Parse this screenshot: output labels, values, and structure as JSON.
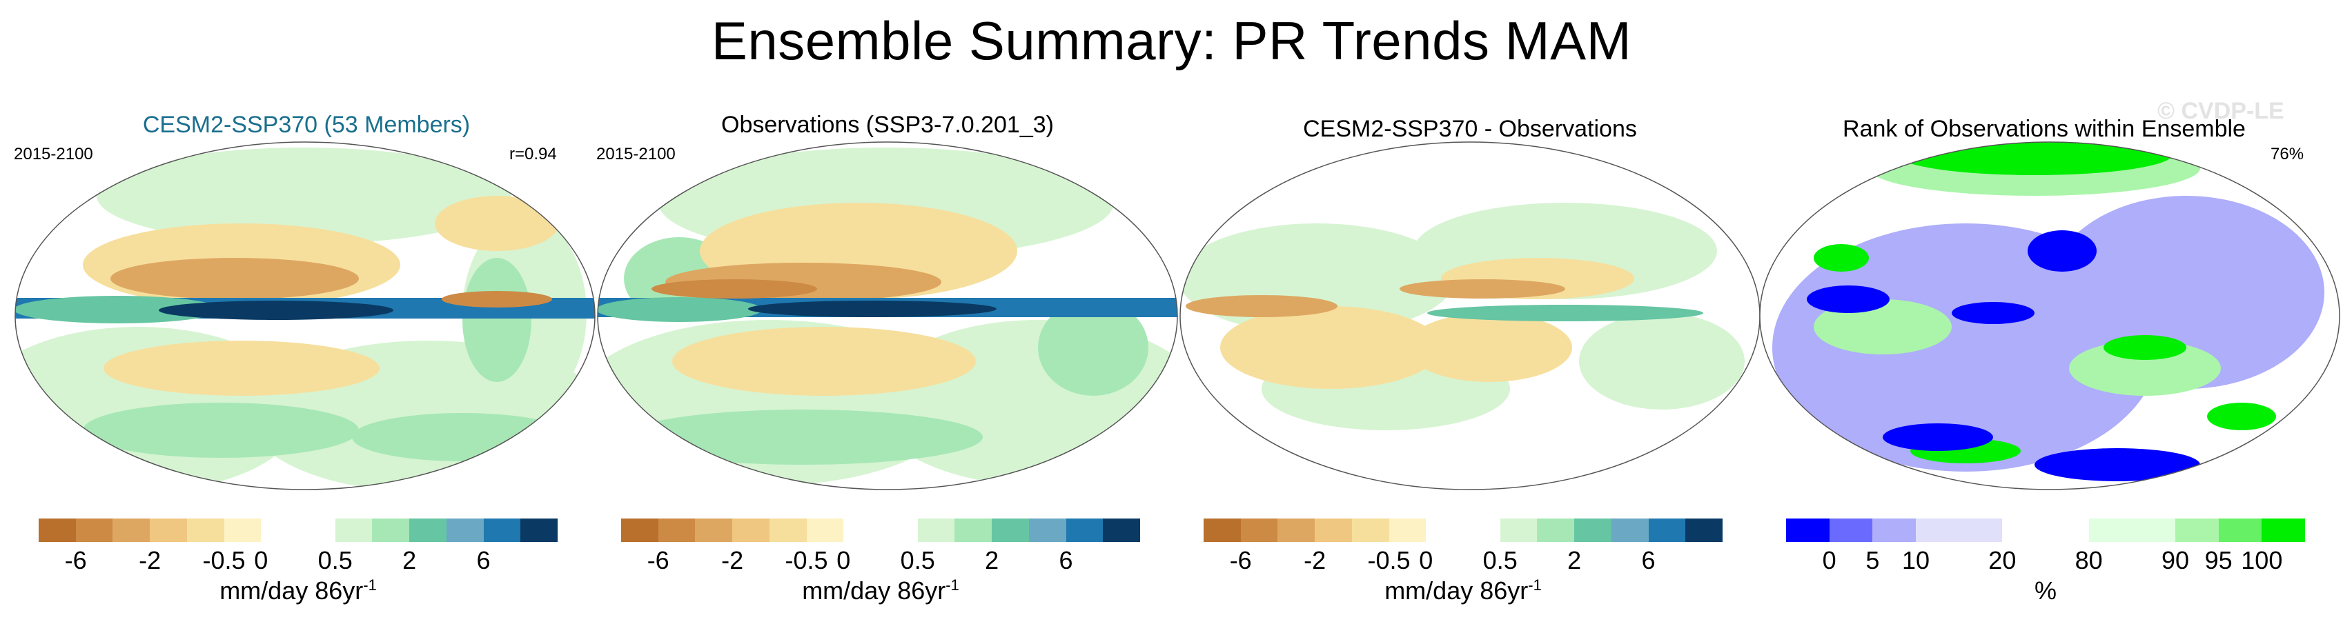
{
  "figure": {
    "title": "Ensemble Summary: PR Trends MAM",
    "watermark": "© CVDP-LE"
  },
  "panels": [
    {
      "title": "CESM2-SSP370 (53 Members)",
      "title_color": "#1a6f8e",
      "period": "2015-2100",
      "stat": "r=0.94"
    },
    {
      "title": "Observations (SSP3-7.0.201_3)",
      "period": "2015-2100"
    },
    {
      "title": "CESM2-SSP370 - Observations"
    },
    {
      "title": "Rank of Observations within Ensemble",
      "stat": "76%"
    }
  ],
  "trend_colorbar": {
    "colors": [
      "#b8702c",
      "#cc8a45",
      "#dea761",
      "#f0c780",
      "#f6df9d",
      "#fcf2c4",
      "#ffffff",
      "#ffffff",
      "#d6f4d2",
      "#a7e7b6",
      "#66c5a2",
      "#6aa8c3",
      "#1f78b0",
      "#0a3a63"
    ],
    "tick_labels": [
      "-6",
      "-2",
      "-0.5",
      "0",
      "0.5",
      "2",
      "6"
    ],
    "unit": "mm/day 86yr",
    "unit_exponent": "-1"
  },
  "rank_colorbar": {
    "colors": [
      "#0000ff",
      "#6a6aff",
      "#aeaefa",
      "#e0e0fa",
      "#e0e0fa",
      "#ffffff",
      "#ffffff",
      "#e0ffe0",
      "#e0ffe0",
      "#aaf5aa",
      "#66f066",
      "#00ee00"
    ],
    "tick_labels": [
      "0",
      "5",
      "10",
      "20",
      "80",
      "90",
      "95",
      "100"
    ],
    "unit": "%"
  },
  "map_colors": {
    "green_light": "#d6f4d2",
    "green_mid": "#a7e7b6",
    "teal": "#66c5a2",
    "blue": "#1f78b0",
    "navy": "#0a3a63",
    "tan_light": "#f6df9d",
    "tan": "#dea761",
    "brown": "#cc8a45",
    "rank_blue": "#0000ff",
    "rank_blue_light": "#aeaefa",
    "rank_green": "#00ee00",
    "rank_green_light": "#aaf5aa"
  }
}
